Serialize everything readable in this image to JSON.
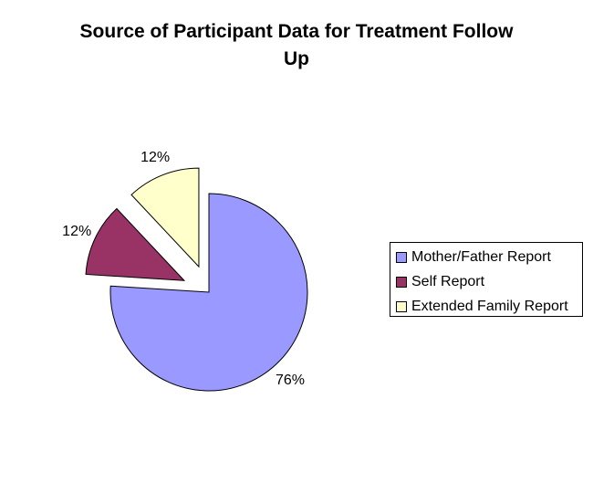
{
  "chart_data": {
    "type": "pie",
    "title": "Source of Participant Data for Treatment Follow Up",
    "title_lines": [
      "Source of Participant Data for Treatment Follow",
      "Up"
    ],
    "categories": [
      "Mother/Father Report",
      "Self Report",
      "Extended Family Report"
    ],
    "values": [
      76,
      12,
      12
    ],
    "data_labels": [
      "76%",
      "12%",
      "12%"
    ],
    "colors": [
      "#9999FF",
      "#993366",
      "#FFFFCC"
    ],
    "exploded": [
      false,
      true,
      true
    ],
    "legend_position": "right",
    "legend": [
      {
        "label": "Mother/Father Report",
        "color": "#9999FF"
      },
      {
        "label": "Self Report",
        "color": "#993366"
      },
      {
        "label": "Extended Family Report",
        "color": "#FFFFCC"
      }
    ]
  }
}
